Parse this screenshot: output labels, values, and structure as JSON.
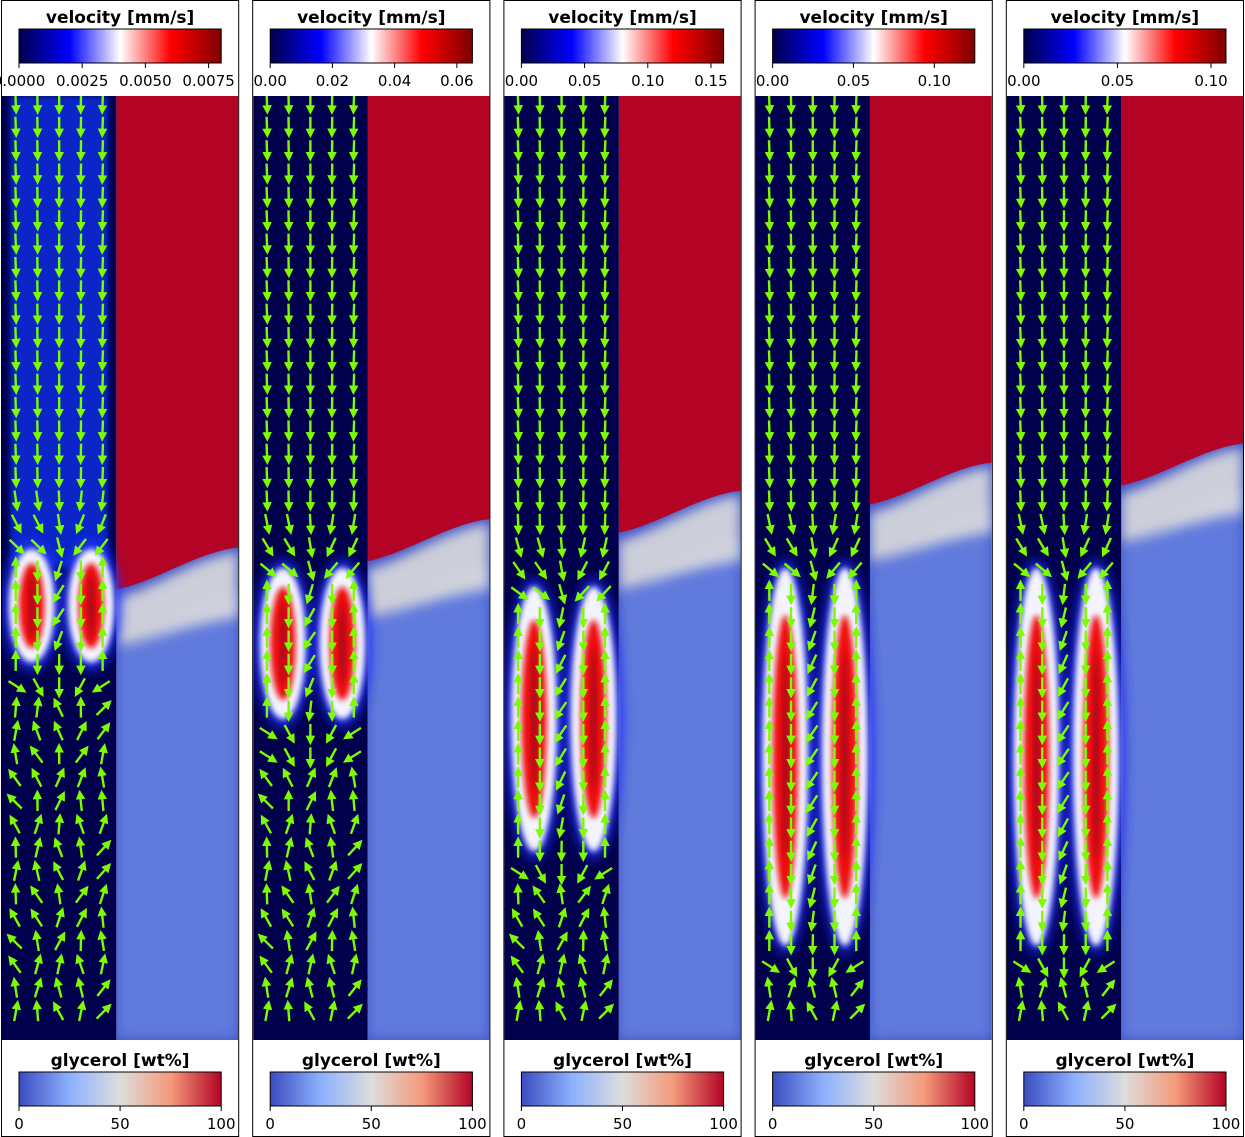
{
  "colormaps": {
    "velocity": [
      "#00004c",
      "#0000ff",
      "#ffffff",
      "#ff0000",
      "#7f0000"
    ],
    "glycerol": [
      "#3b4cc0",
      "#8db0fe",
      "#dddddd",
      "#f49a7b",
      "#b40426"
    ]
  },
  "arrow_color": "#7cfc00",
  "chart_data": [
    {
      "type": "contour-field",
      "velocity_colorbar": {
        "title": "velocity [mm/s]",
        "ticks": [
          "0.0000",
          "0.0025",
          "0.0050",
          "0.0075"
        ],
        "tick_values": [
          0,
          0.0025,
          0.005,
          0.0075
        ],
        "range": [
          0,
          0.008
        ]
      },
      "glycerol_colorbar": {
        "title": "glycerol [wt%]",
        "ticks": [
          "0",
          "50",
          "100"
        ],
        "tick_values": [
          0,
          50,
          100
        ],
        "range": [
          0,
          100
        ]
      },
      "interface_fraction": 0.51,
      "vortex_count": 2,
      "vortex_extent": [
        0.48,
        0.6
      ]
    },
    {
      "type": "contour-field",
      "velocity_colorbar": {
        "title": "velocity [mm/s]",
        "ticks": [
          "0.00",
          "0.02",
          "0.04",
          "0.06"
        ],
        "tick_values": [
          0,
          0.02,
          0.04,
          0.06
        ],
        "range": [
          0,
          0.065
        ]
      },
      "glycerol_colorbar": {
        "title": "glycerol [wt%]",
        "ticks": [
          "0",
          "50",
          "100"
        ],
        "tick_values": [
          0,
          50,
          100
        ],
        "range": [
          0,
          100
        ]
      },
      "interface_fraction": 0.48,
      "vortex_count": 2,
      "vortex_extent": [
        0.5,
        0.66
      ]
    },
    {
      "type": "contour-field",
      "velocity_colorbar": {
        "title": "velocity [mm/s]",
        "ticks": [
          "0.00",
          "0.05",
          "0.10",
          "0.15"
        ],
        "tick_values": [
          0,
          0.05,
          0.1,
          0.15
        ],
        "range": [
          0,
          0.16
        ]
      },
      "glycerol_colorbar": {
        "title": "glycerol [wt%]",
        "ticks": [
          "0",
          "50",
          "100"
        ],
        "tick_values": [
          0,
          50,
          100
        ],
        "range": [
          0,
          100
        ]
      },
      "interface_fraction": 0.45,
      "vortex_count": 2,
      "vortex_extent": [
        0.52,
        0.8
      ]
    },
    {
      "type": "contour-field",
      "velocity_colorbar": {
        "title": "velocity [mm/s]",
        "ticks": [
          "0.00",
          "0.05",
          "0.10"
        ],
        "tick_values": [
          0,
          0.05,
          0.1
        ],
        "range": [
          0,
          0.125
        ]
      },
      "glycerol_colorbar": {
        "title": "glycerol [wt%]",
        "ticks": [
          "0",
          "50",
          "100"
        ],
        "tick_values": [
          0,
          50,
          100
        ],
        "range": [
          0,
          100
        ]
      },
      "interface_fraction": 0.42,
      "vortex_count": 2,
      "vortex_extent": [
        0.5,
        0.9
      ]
    },
    {
      "type": "contour-field",
      "velocity_colorbar": {
        "title": "velocity [mm/s]",
        "ticks": [
          "0.00",
          "0.05",
          "0.10"
        ],
        "tick_values": [
          0,
          0.05,
          0.1
        ],
        "range": [
          0,
          0.108
        ]
      },
      "glycerol_colorbar": {
        "title": "glycerol [wt%]",
        "ticks": [
          "0",
          "50",
          "100"
        ],
        "tick_values": [
          0,
          50,
          100
        ],
        "range": [
          0,
          100
        ]
      },
      "interface_fraction": 0.4,
      "vortex_count": 2,
      "vortex_extent": [
        0.5,
        0.9
      ]
    }
  ]
}
